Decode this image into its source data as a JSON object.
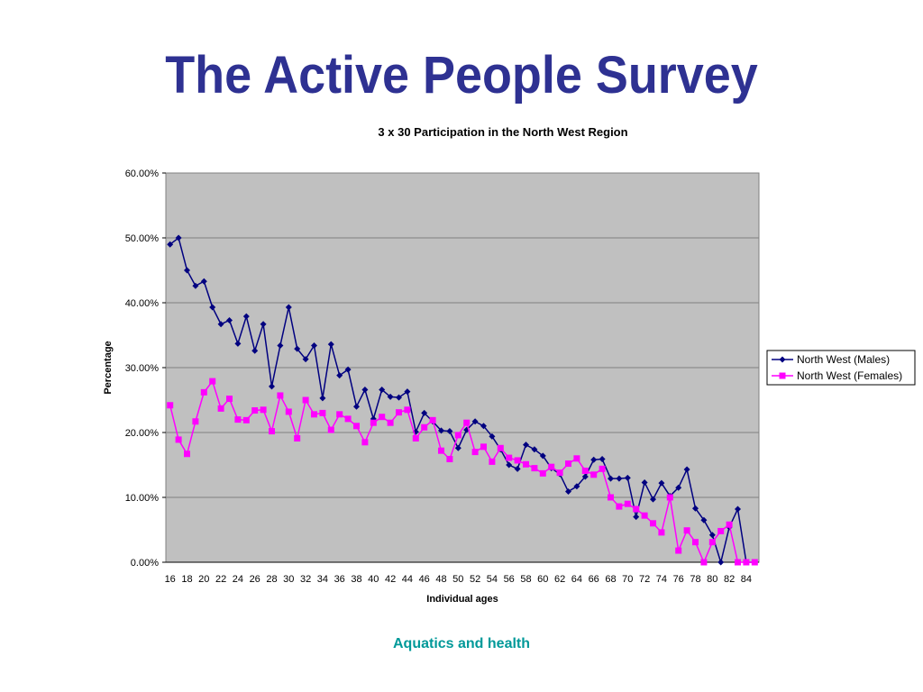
{
  "slide": {
    "title": "The Active People Survey",
    "footer": "Aquatics and health",
    "title_color": "#2e3192",
    "footer_color": "#009999"
  },
  "chart_data": {
    "type": "line",
    "title": "3 x 30 Participation in the North West Region",
    "xlabel": "Individual ages",
    "ylabel": "Percentage",
    "ylim": [
      0,
      60
    ],
    "y_ticks": [
      "0.00%",
      "10.00%",
      "20.00%",
      "30.00%",
      "40.00%",
      "50.00%",
      "60.00%"
    ],
    "x_tick_labels": [
      "16",
      "18",
      "20",
      "22",
      "24",
      "26",
      "28",
      "30",
      "32",
      "34",
      "36",
      "38",
      "40",
      "42",
      "44",
      "46",
      "48",
      "50",
      "52",
      "54",
      "56",
      "58",
      "60",
      "62",
      "64",
      "66",
      "68",
      "70",
      "72",
      "74",
      "76",
      "78",
      "80",
      "82",
      "84"
    ],
    "grid": "horizontal",
    "plot_background": "#c0c0c0",
    "legend_position": "right",
    "x": [
      16,
      17,
      18,
      19,
      20,
      21,
      22,
      23,
      24,
      25,
      26,
      27,
      28,
      29,
      30,
      31,
      32,
      33,
      34,
      35,
      36,
      37,
      38,
      39,
      40,
      41,
      42,
      43,
      44,
      45,
      46,
      47,
      48,
      49,
      50,
      51,
      52,
      53,
      54,
      55,
      56,
      57,
      58,
      59,
      60,
      61,
      62,
      63,
      64,
      65,
      66,
      67,
      68,
      69,
      70,
      71,
      72,
      73,
      74,
      75,
      76,
      77,
      78,
      79,
      80,
      81,
      82,
      83,
      84,
      85
    ],
    "series": [
      {
        "name": "North West (Males)",
        "color": "#000080",
        "marker": "diamond",
        "values": [
          49,
          50,
          45,
          42.6,
          43.3,
          39.3,
          36.7,
          37.3,
          33.7,
          37.9,
          32.6,
          36.7,
          27.1,
          33.4,
          39.3,
          32.9,
          31.3,
          33.4,
          25.3,
          33.6,
          28.8,
          29.7,
          24,
          26.6,
          22.1,
          26.6,
          25.5,
          25.4,
          26.3,
          20.1,
          23,
          21.7,
          20.3,
          20.2,
          17.6,
          20.4,
          21.7,
          21,
          19.4,
          17.4,
          15,
          14.4,
          18.1,
          17.4,
          16.4,
          14.5,
          13.6,
          10.9,
          11.7,
          13.2,
          15.8,
          15.9,
          12.9,
          12.9,
          13,
          7,
          12.3,
          9.7,
          12.2,
          10.2,
          11.5,
          14.3,
          8.3,
          6.5,
          4.2,
          0,
          5.4,
          8.2,
          0,
          0
        ]
      },
      {
        "name": "North West (Females)",
        "color": "#ff00ff",
        "marker": "square",
        "values": [
          24.2,
          18.9,
          16.7,
          21.7,
          26.2,
          27.9,
          23.7,
          25.2,
          22,
          21.9,
          23.4,
          23.5,
          20.2,
          25.7,
          23.2,
          19.1,
          25,
          22.8,
          23,
          20.4,
          22.8,
          22.1,
          21,
          18.5,
          21.5,
          22.4,
          21.5,
          23.1,
          23.5,
          19.1,
          20.8,
          21.9,
          17.2,
          15.9,
          19.6,
          21.5,
          17,
          17.8,
          15.5,
          17.6,
          16.1,
          15.7,
          15.1,
          14.5,
          13.7,
          14.7,
          13.8,
          15.2,
          16,
          14.1,
          13.5,
          14.4,
          10,
          8.6,
          9,
          8.2,
          7.2,
          6,
          4.6,
          10,
          1.8,
          4.9,
          3.1,
          0,
          3.1,
          4.8,
          5.8,
          0,
          0,
          0
        ]
      }
    ]
  }
}
